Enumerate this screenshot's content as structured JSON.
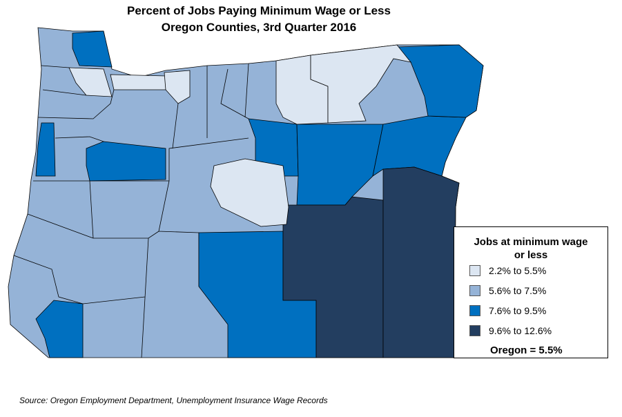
{
  "title": [
    "Percent of Jobs Paying Minimum Wage or Less",
    "Oregon Counties, 3rd Quarter 2016"
  ],
  "legend": {
    "title": "Jobs at minimum wage or less",
    "items": [
      {
        "label": "2.2% to 5.5%",
        "color": "#dce6f2"
      },
      {
        "label": "5.6% to 7.5%",
        "color": "#95b3d7"
      },
      {
        "label": "7.6% to 9.5%",
        "color": "#0070c0"
      },
      {
        "label": "9.6% to 12.6%",
        "color": "#233e60"
      }
    ],
    "note": "Oregon = 5.5%"
  },
  "source": "Source: Oregon Employment Department, Unemployment Insurance Wage Records"
}
